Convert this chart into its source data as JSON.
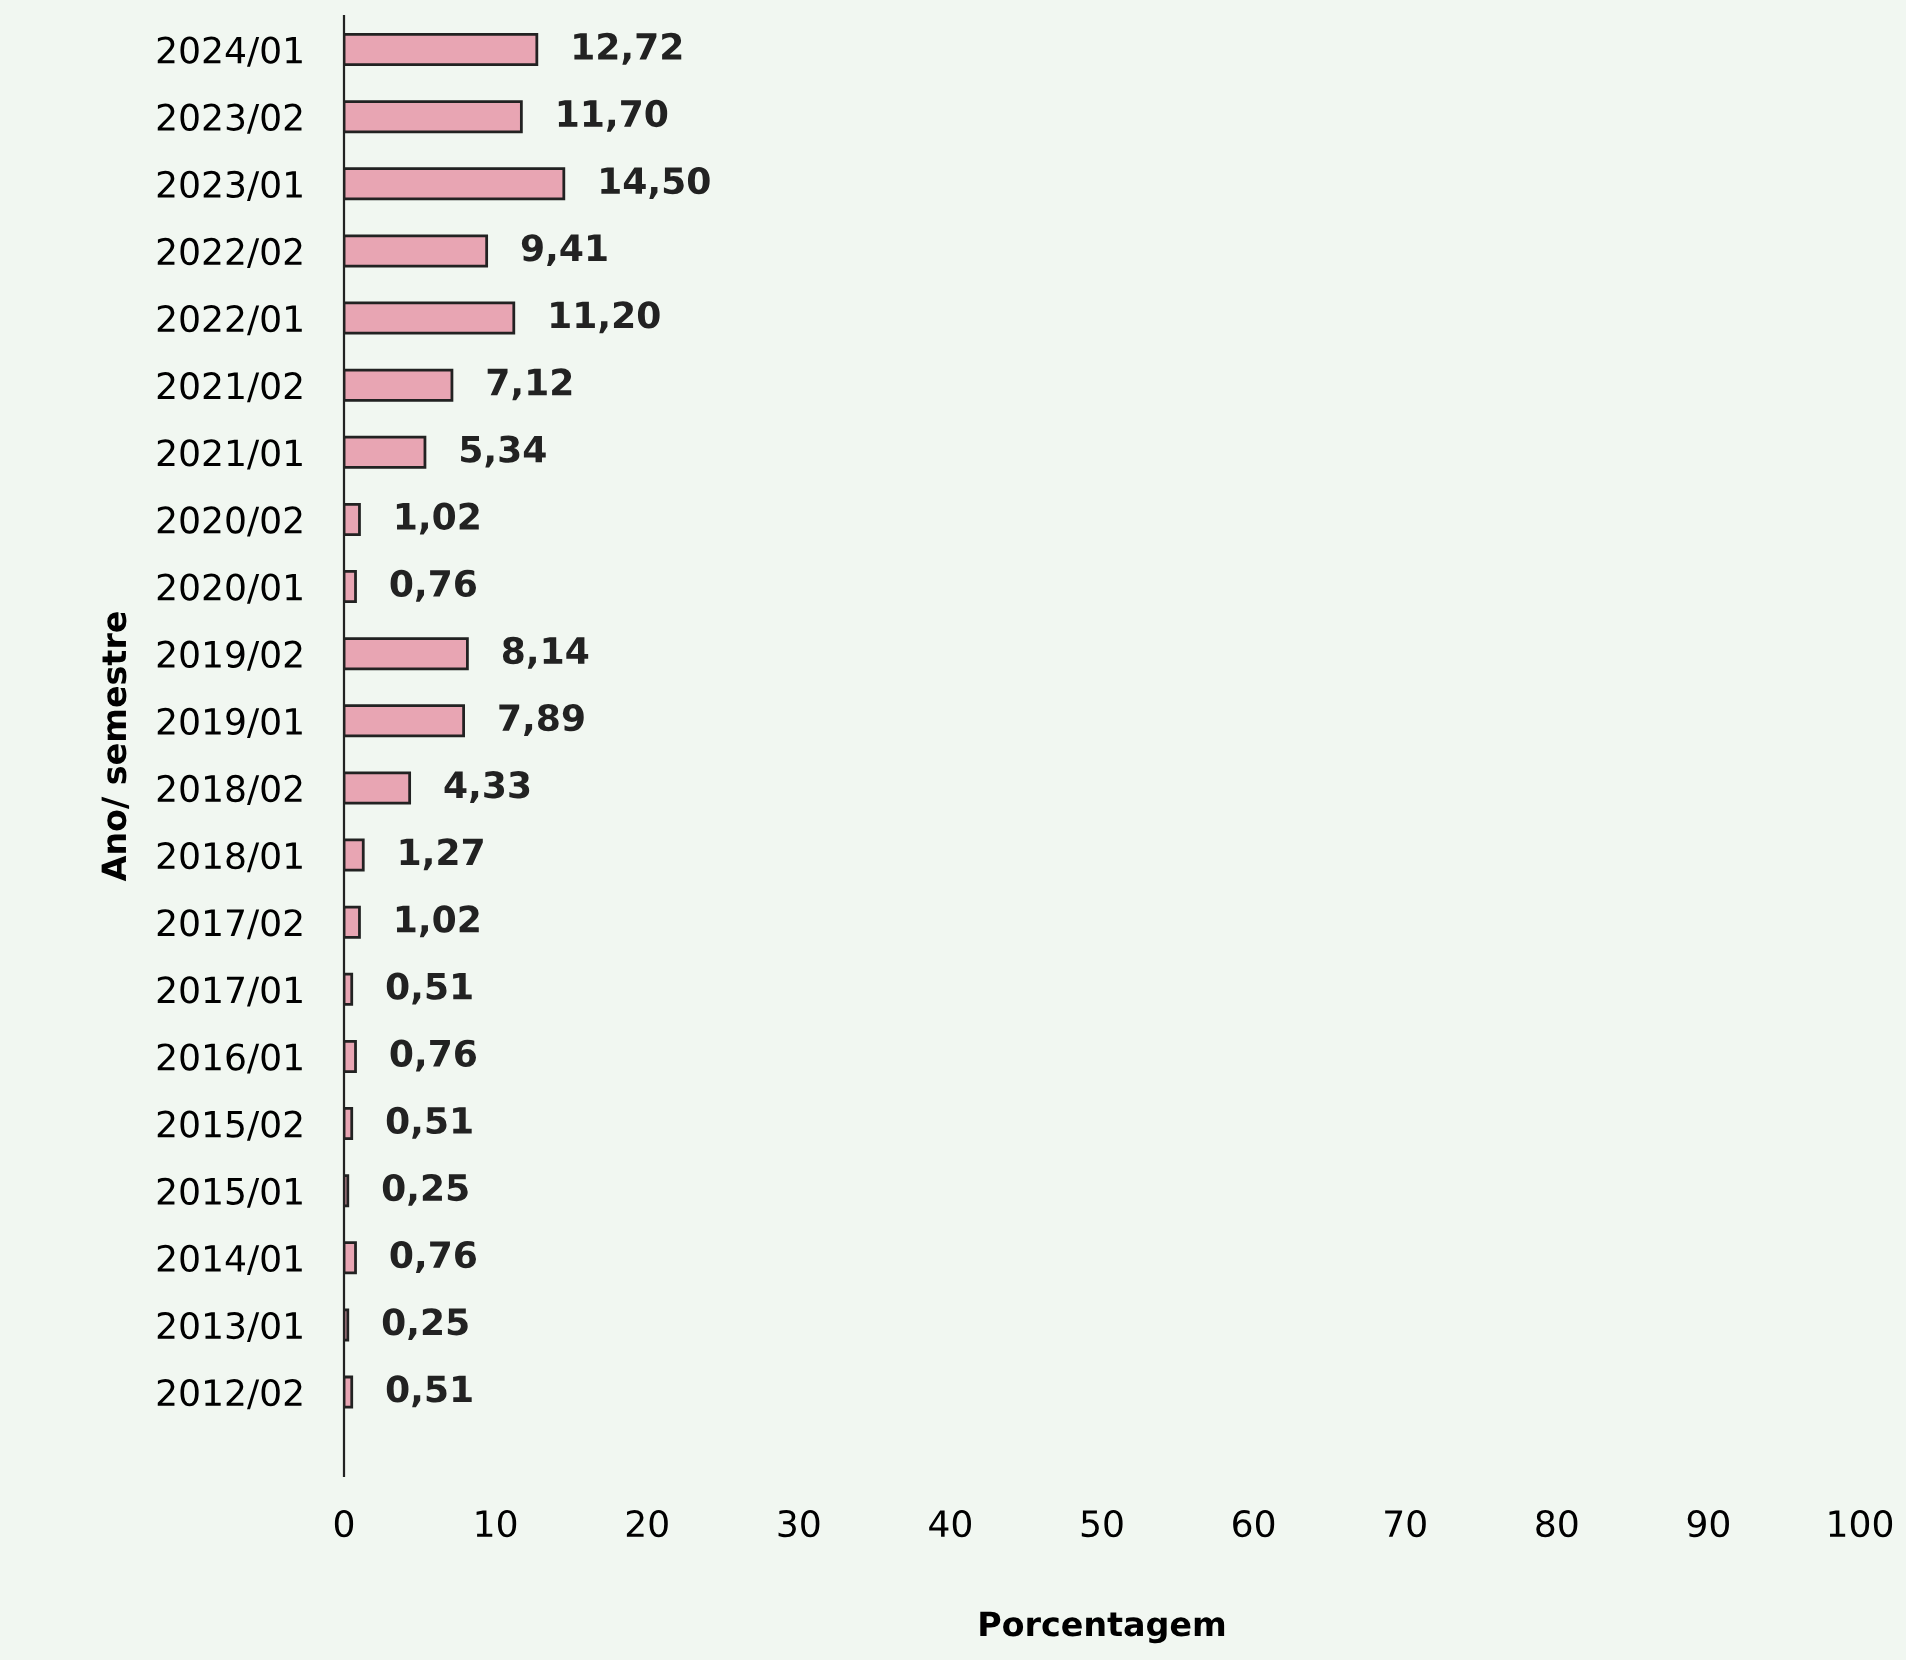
{
  "chart_data": {
    "type": "bar",
    "orientation": "horizontal",
    "xlabel": "Porcentagem",
    "ylabel": "Ano/ semestre",
    "categories": [
      "2024/01",
      "2023/02",
      "2023/01",
      "2022/02",
      "2022/01",
      "2021/02",
      "2021/01",
      "2020/02",
      "2020/01",
      "2019/02",
      "2019/01",
      "2018/02",
      "2018/01",
      "2017/02",
      "2017/01",
      "2016/01",
      "2015/02",
      "2015/01",
      "2014/01",
      "2013/01",
      "2012/02"
    ],
    "values": [
      12.72,
      11.7,
      14.5,
      9.41,
      11.2,
      7.12,
      5.34,
      1.02,
      0.76,
      8.14,
      7.89,
      4.33,
      1.27,
      1.02,
      0.51,
      0.76,
      0.51,
      0.25,
      0.76,
      0.25,
      0.51
    ],
    "value_labels": [
      "12,72",
      "11,70",
      "14,50",
      "9,41",
      "11,20",
      "7,12",
      "5,34",
      "1,02",
      "0,76",
      "8,14",
      "7,89",
      "4,33",
      "1,27",
      "1,02",
      "0,51",
      "0,76",
      "0,51",
      "0,25",
      "0,76",
      "0,25",
      "0,51"
    ],
    "color": "#e8a5b3",
    "xlim": [
      0,
      100
    ],
    "xticks": [
      0,
      10,
      20,
      30,
      40,
      50,
      60,
      70,
      80,
      90,
      100
    ],
    "grid": false
  }
}
